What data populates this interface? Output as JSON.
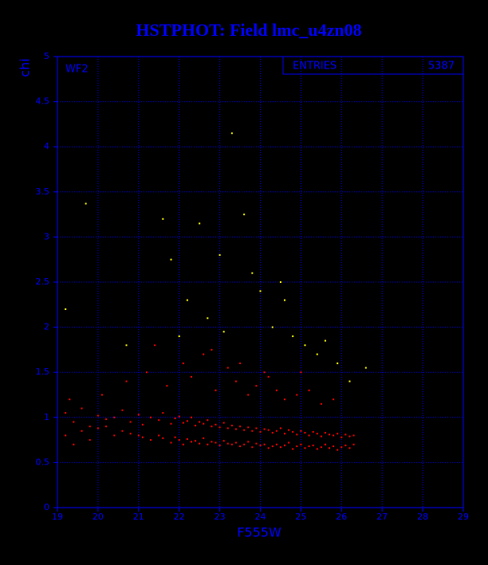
{
  "chart_data": {
    "type": "scatter",
    "title": "HSTPHOT: Field lmc_u4zn08",
    "panel_label": "WF2",
    "stats_label": "ENTRIES",
    "entries": 5387,
    "xlabel": "F555W",
    "ylabel": "chi",
    "xlim": [
      19,
      29
    ],
    "ylim": [
      0,
      5
    ],
    "xticks": [
      19,
      20,
      21,
      22,
      23,
      24,
      25,
      26,
      27,
      28,
      29
    ],
    "yticks": [
      0,
      0.5,
      1,
      1.5,
      2,
      2.5,
      3,
      3.5,
      4,
      4.5,
      5
    ],
    "grid": true,
    "series": [
      {
        "color": "#ff0000",
        "x": [
          19.2,
          19.4,
          19.6,
          19.8,
          20.0,
          20.2,
          20.4,
          20.6,
          20.8,
          21.0,
          21.1,
          21.3,
          21.5,
          21.6,
          21.8,
          21.9,
          22.0,
          22.1,
          22.2,
          22.3,
          22.4,
          22.5,
          22.6,
          22.7,
          22.8,
          22.9,
          23.0,
          23.1,
          23.2,
          23.3,
          23.4,
          23.5,
          23.6,
          23.7,
          23.8,
          23.9,
          24.0,
          24.1,
          24.2,
          24.3,
          24.4,
          24.5,
          24.6,
          24.7,
          24.8,
          24.9,
          25.0,
          25.1,
          25.2,
          25.3,
          25.4,
          25.5,
          25.6,
          25.7,
          25.8,
          25.9,
          26.0,
          26.1,
          26.2,
          26.3,
          19.2,
          19.4,
          19.6,
          19.8,
          20.0,
          20.2,
          20.4,
          20.6,
          20.8,
          21.0,
          21.1,
          21.3,
          21.5,
          21.6,
          21.8,
          21.9,
          22.0,
          22.1,
          22.2,
          22.3,
          22.4,
          22.5,
          22.6,
          22.7,
          22.8,
          22.9,
          23.0,
          23.1,
          23.2,
          23.3,
          23.4,
          23.5,
          23.6,
          23.7,
          23.8,
          23.9,
          24.0,
          24.1,
          24.2,
          24.3,
          24.4,
          24.5,
          24.6,
          24.7,
          24.8,
          24.9,
          25.0,
          25.1,
          25.2,
          25.3,
          25.4,
          25.5,
          25.6,
          25.7,
          25.8,
          25.9,
          26.0,
          26.1,
          26.2,
          26.3,
          19.3,
          20.1,
          20.7,
          21.2,
          21.7,
          22.1,
          22.3,
          22.6,
          22.9,
          23.2,
          23.4,
          23.7,
          23.9,
          24.1,
          24.4,
          24.6,
          24.9,
          25.2,
          25.5,
          25.8,
          21.4,
          22.8,
          23.5,
          24.2,
          25.0
        ],
        "values": [
          1.05,
          0.95,
          1.1,
          0.9,
          1.02,
          0.98,
          1.0,
          1.08,
          0.95,
          1.03,
          0.92,
          1.0,
          0.97,
          1.05,
          0.93,
          0.99,
          1.01,
          0.94,
          0.96,
          1.0,
          0.91,
          0.95,
          0.93,
          0.97,
          0.9,
          0.92,
          0.89,
          0.94,
          0.88,
          0.91,
          0.87,
          0.9,
          0.86,
          0.89,
          0.85,
          0.88,
          0.84,
          0.87,
          0.86,
          0.83,
          0.85,
          0.88,
          0.82,
          0.86,
          0.84,
          0.81,
          0.85,
          0.83,
          0.8,
          0.84,
          0.82,
          0.79,
          0.83,
          0.81,
          0.8,
          0.82,
          0.78,
          0.81,
          0.79,
          0.8,
          0.8,
          0.7,
          0.85,
          0.75,
          0.88,
          0.9,
          0.8,
          0.85,
          0.82,
          0.8,
          0.78,
          0.75,
          0.8,
          0.77,
          0.72,
          0.78,
          0.75,
          0.7,
          0.76,
          0.73,
          0.74,
          0.71,
          0.77,
          0.7,
          0.73,
          0.72,
          0.69,
          0.74,
          0.71,
          0.7,
          0.72,
          0.68,
          0.7,
          0.73,
          0.67,
          0.71,
          0.69,
          0.7,
          0.66,
          0.68,
          0.7,
          0.67,
          0.69,
          0.72,
          0.65,
          0.68,
          0.7,
          0.66,
          0.68,
          0.69,
          0.65,
          0.67,
          0.7,
          0.66,
          0.68,
          0.64,
          0.67,
          0.69,
          0.66,
          0.7,
          1.2,
          1.25,
          1.4,
          1.5,
          1.35,
          1.6,
          1.45,
          1.7,
          1.3,
          1.55,
          1.4,
          1.25,
          1.35,
          1.5,
          1.3,
          1.2,
          1.25,
          1.3,
          1.15,
          1.2,
          1.8,
          1.75,
          1.6,
          1.45,
          1.5
        ]
      },
      {
        "color": "#ffff00",
        "x": [
          19.2,
          19.7,
          21.6,
          21.8,
          22.2,
          22.5,
          22.7,
          23.1,
          23.3,
          23.6,
          23.8,
          24.0,
          24.3,
          24.5,
          24.8,
          25.1,
          25.4,
          25.6,
          25.9,
          26.2,
          26.6,
          22.0,
          23.0,
          24.6,
          20.7
        ],
        "values": [
          2.2,
          3.37,
          3.2,
          2.75,
          2.3,
          3.15,
          2.1,
          1.95,
          4.15,
          3.25,
          2.6,
          2.4,
          2.0,
          2.5,
          1.9,
          1.8,
          1.7,
          1.85,
          1.6,
          1.4,
          1.55,
          1.9,
          2.8,
          2.3,
          1.8
        ]
      }
    ]
  }
}
